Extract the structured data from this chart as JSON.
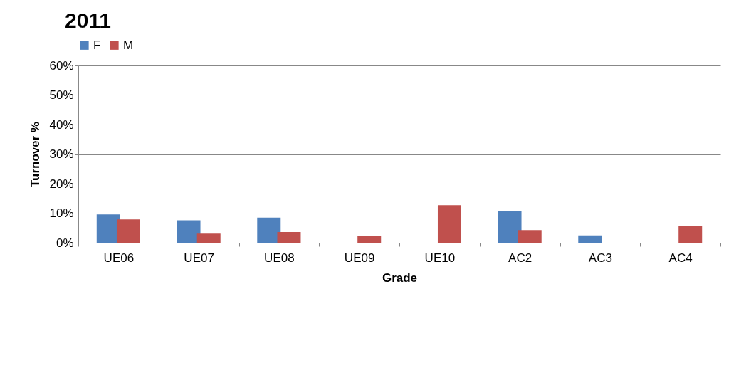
{
  "chart_data": {
    "type": "bar",
    "title": "2011",
    "xlabel": "Grade",
    "ylabel": "Turnover %",
    "categories": [
      "UE06",
      "UE07",
      "UE08",
      "UE09",
      "UE10",
      "AC2",
      "AC3",
      "AC4"
    ],
    "series": [
      {
        "name": "F",
        "color": "#4f81bd",
        "values": [
          9.6,
          7.6,
          8.5,
          null,
          null,
          10.7,
          2.5,
          null
        ]
      },
      {
        "name": "M",
        "color": "#c0504d",
        "values": [
          7.9,
          3.1,
          3.6,
          2.2,
          12.7,
          4.3,
          null,
          5.7
        ]
      }
    ],
    "ylim": [
      0,
      60
    ],
    "yticks": [
      {
        "value": 0,
        "label": "0%"
      },
      {
        "value": 10,
        "label": "10%"
      },
      {
        "value": 20,
        "label": "20%"
      },
      {
        "value": 30,
        "label": "30%"
      },
      {
        "value": 40,
        "label": "40%"
      },
      {
        "value": 50,
        "label": "50%"
      },
      {
        "value": 60,
        "label": "60%"
      }
    ],
    "grid": "y",
    "legend": "top"
  }
}
